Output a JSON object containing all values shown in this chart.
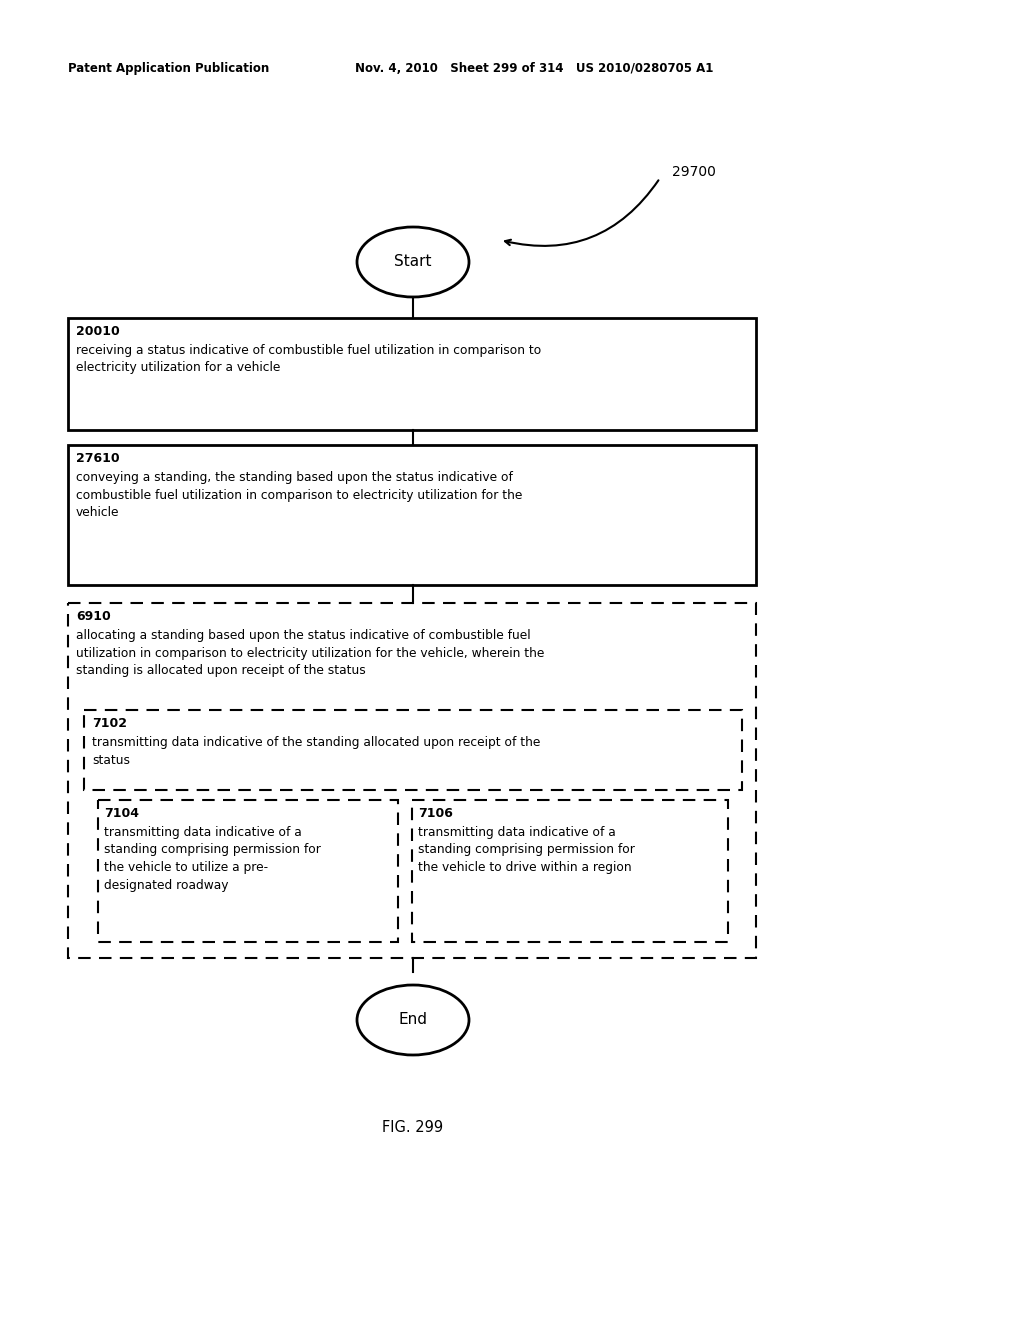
{
  "header_left": "Patent Application Publication",
  "header_mid": "Nov. 4, 2010   Sheet 299 of 314   US 2010/0280705 A1",
  "fig_label": "FIG. 299",
  "ref_number": "29700",
  "start_label": "Start",
  "end_label": "End",
  "box1_id": "20010",
  "box1_text": "receiving a status indicative of combustible fuel utilization in comparison to\nelectricity utilization for a vehicle",
  "box2_id": "27610",
  "box2_text": "conveying a standing, the standing based upon the status indicative of\ncombustible fuel utilization in comparison to electricity utilization for the\nvehicle",
  "box3_id": "6910",
  "box3_text": "allocating a standing based upon the status indicative of combustible fuel\nutilization in comparison to electricity utilization for the vehicle, wherein the\nstanding is allocated upon receipt of the status",
  "box4_id": "7102",
  "box4_text": "transmitting data indicative of the standing allocated upon receipt of the\nstatus",
  "box5_id": "7104",
  "box5_text": "transmitting data indicative of a\nstanding comprising permission for\nthe vehicle to utilize a pre-\ndesignated roadway",
  "box6_id": "7106",
  "box6_text": "transmitting data indicative of a\nstanding comprising permission for\nthe vehicle to drive within a region",
  "bg_color": "#ffffff",
  "text_color": "#000000"
}
